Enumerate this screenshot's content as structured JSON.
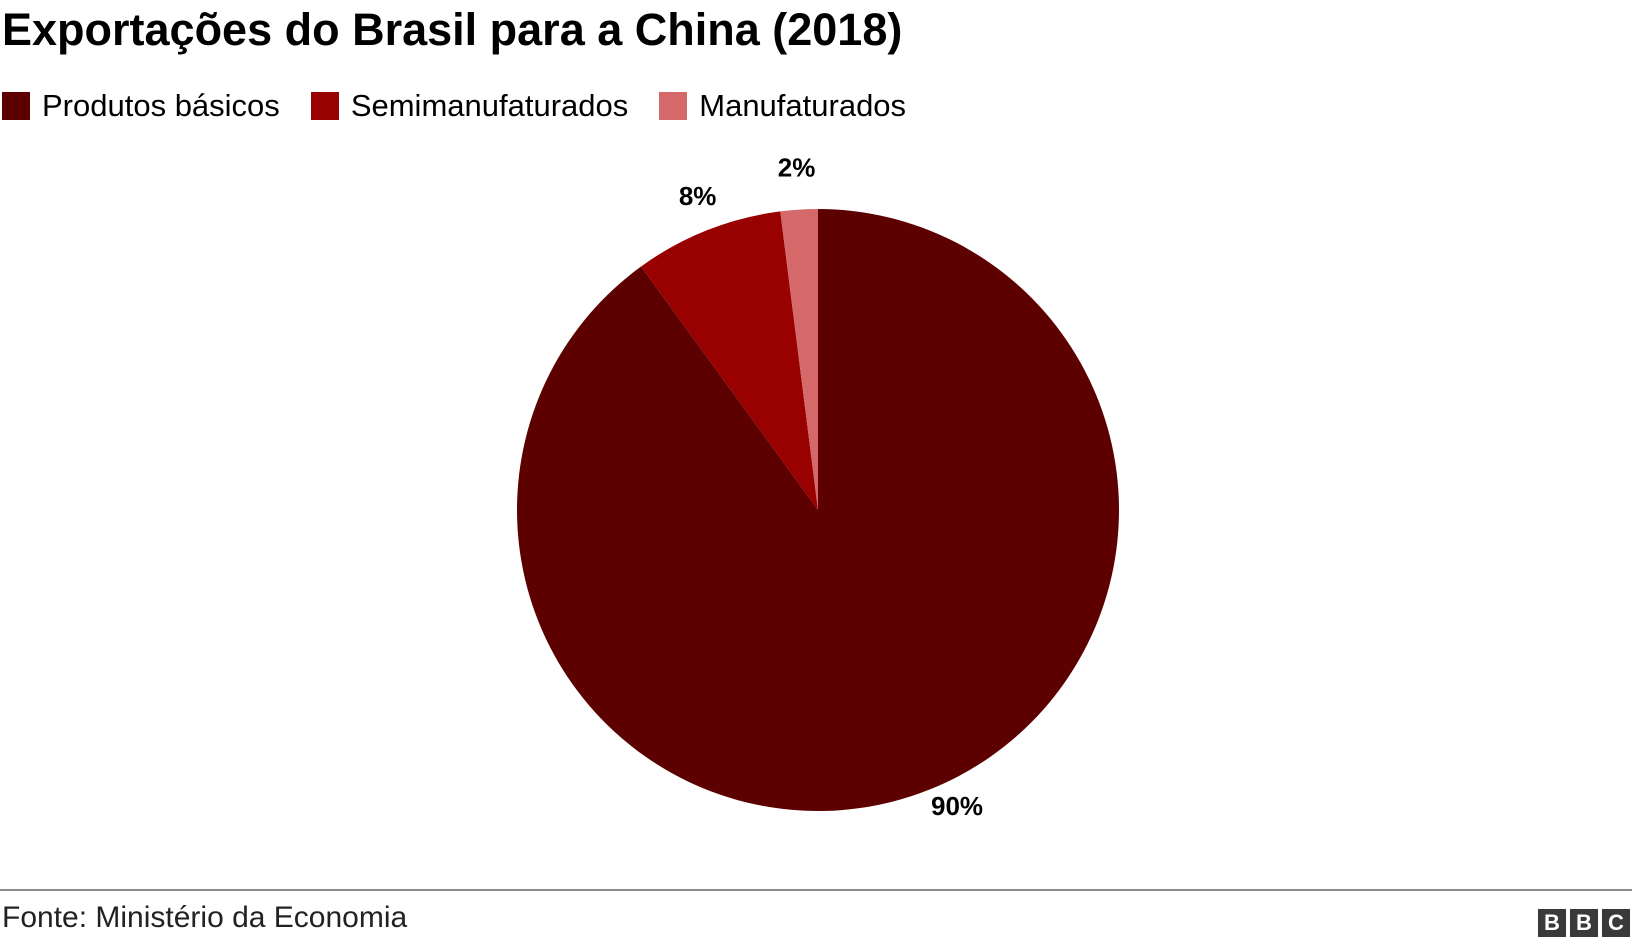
{
  "title": "Exportações do Brasil para a China (2018)",
  "legend": [
    {
      "label": "Produtos básicos",
      "color": "#5c0000"
    },
    {
      "label": "Semimanufaturados",
      "color": "#990000"
    },
    {
      "label": "Manufaturados",
      "color": "#d5696a"
    }
  ],
  "chart_data": {
    "type": "pie",
    "title": "Exportações do Brasil para a China (2018)",
    "categories": [
      "Produtos básicos",
      "Semimanufaturados",
      "Manufaturados"
    ],
    "values": [
      90,
      8,
      2
    ],
    "data_labels": [
      "90%",
      "8%",
      "2%"
    ],
    "colors": [
      "#5c0000",
      "#990000",
      "#d5696a"
    ],
    "legend_position": "top-left"
  },
  "footer": {
    "source": "Fonte: Ministério da Economia",
    "logo_letters": [
      "B",
      "B",
      "C"
    ]
  }
}
